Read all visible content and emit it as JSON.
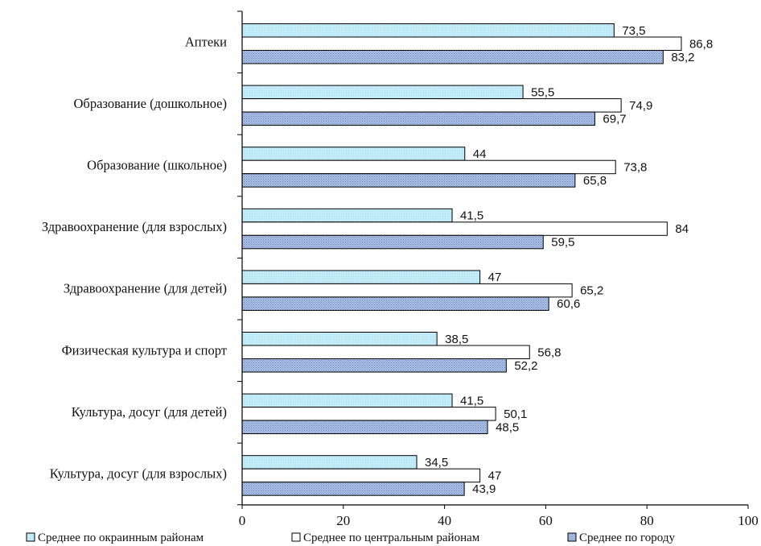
{
  "chart_data": {
    "type": "bar",
    "orientation": "horizontal",
    "categories": [
      "Аптеки",
      "Образование (дошкольное)",
      "Образование (школьное)",
      "Здравоохранение (для взрослых)",
      "Здравоохранение (для детей)",
      "Физическая культура и спорт",
      "Культура, досуг (для детей)",
      "Культура, досуг (для взрослых)"
    ],
    "series": [
      {
        "name": "Среднее по окраинным районам",
        "values": [
          73.5,
          55.5,
          44,
          41.5,
          47,
          38.5,
          41.5,
          34.5
        ],
        "labels": [
          "73,5",
          "55,5",
          "44",
          "41,5",
          "47",
          "38,5",
          "41,5",
          "34,5"
        ],
        "color": "#bfe9f5",
        "pattern": "light-fill"
      },
      {
        "name": "Среднее по центральным районам",
        "values": [
          86.8,
          74.9,
          73.8,
          84,
          65.2,
          56.8,
          50.1,
          47
        ],
        "labels": [
          "86,8",
          "74,9",
          "73,8",
          "84",
          "65,2",
          "56,8",
          "50,1",
          "47"
        ],
        "color": "#ffffff",
        "pattern": "plain"
      },
      {
        "name": "Среднее по городу",
        "values": [
          83.2,
          69.7,
          65.8,
          59.5,
          60.6,
          52.2,
          48.5,
          43.9
        ],
        "labels": [
          "83,2",
          "69,7",
          "65,8",
          "59,5",
          "60,6",
          "52,2",
          "48,5",
          "43,9"
        ],
        "color": "#9db4dc",
        "pattern": "dotted"
      }
    ],
    "xlim": [
      0,
      100
    ],
    "xticks": [
      0,
      20,
      40,
      60,
      80,
      100
    ],
    "xtick_labels": [
      "0",
      "20",
      "40",
      "60",
      "80",
      "100"
    ],
    "title": "",
    "xlabel": "",
    "ylabel": "",
    "grid": false,
    "legend_position": "bottom"
  }
}
